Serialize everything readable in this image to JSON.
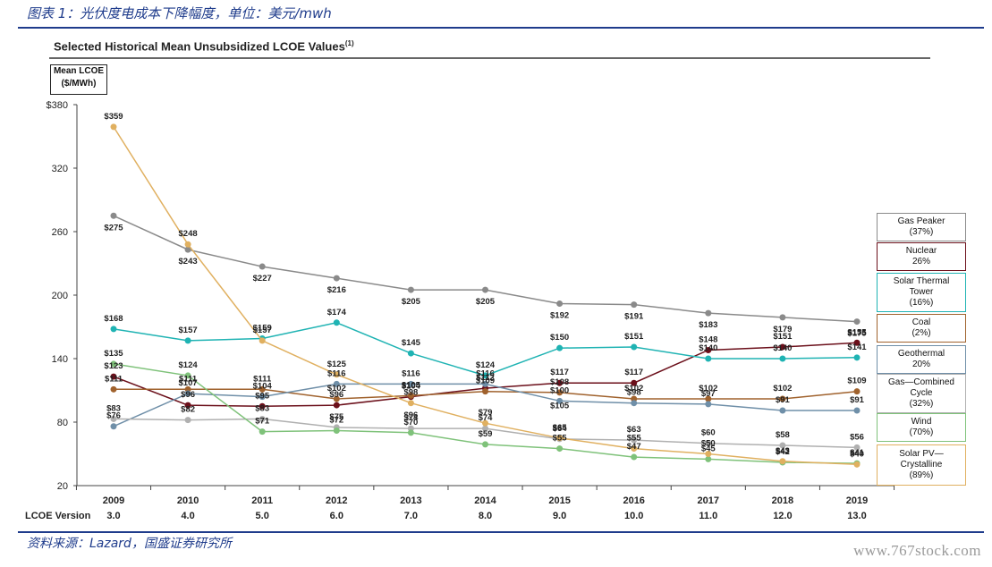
{
  "caption": "图表 1：光伏度电成本下降幅度，单位：美元/mwh",
  "source": "资料来源：Lazard，国盛证券研究所",
  "watermark": "www.767stock.com",
  "chart_data": {
    "type": "line",
    "title": "Selected Historical Mean Unsubsidized LCOE Values",
    "title_sup": "(1)",
    "ylabel_line1": "Mean LCOE",
    "ylabel_line2": "($/MWh)",
    "ylim": [
      20,
      380
    ],
    "y_ticks": [
      "$380",
      "320",
      "260",
      "200",
      "140",
      "80",
      "20"
    ],
    "categories": [
      "2009",
      "2010",
      "2011",
      "2012",
      "2013",
      "2014",
      "2015",
      "2016",
      "2017",
      "2018",
      "2019"
    ],
    "version_label": "LCOE Version",
    "versions": [
      "3.0",
      "4.0",
      "5.0",
      "6.0",
      "7.0",
      "8.0",
      "9.0",
      "10.0",
      "11.0",
      "12.0",
      "13.0"
    ],
    "grid": false,
    "legend_position": "right",
    "series": [
      {
        "name": "Gas Peaker",
        "legend": [
          "Gas Peaker",
          "(37%)"
        ],
        "color": "#8a8a8a",
        "values": [
          275,
          243,
          227,
          216,
          205,
          205,
          192,
          191,
          183,
          179,
          175
        ],
        "labels": [
          "$275",
          "$243",
          "$227",
          "$216",
          "$205",
          "$205",
          "$192",
          "$191",
          "$183",
          "$179",
          "$175"
        ]
      },
      {
        "name": "Nuclear",
        "legend": [
          "Nuclear",
          "26%"
        ],
        "color": "#6b0f1a",
        "values": [
          123,
          96,
          95,
          96,
          104,
          112,
          117,
          117,
          148,
          151,
          155
        ],
        "labels": [
          "$123",
          "$96",
          "$95",
          "$96",
          "$104",
          "$112",
          "$117",
          "$117",
          "$148",
          "$151",
          "$155"
        ]
      },
      {
        "name": "Solar Thermal Tower",
        "legend": [
          "Solar Thermal",
          "Tower",
          "(16%)"
        ],
        "color": "#1fb3b3",
        "values": [
          168,
          157,
          159,
          174,
          145,
          124,
          150,
          151,
          140,
          140,
          141
        ],
        "labels": [
          "$168",
          "$157",
          "$159",
          "$174",
          "$145",
          "$124",
          "$150",
          "$151",
          "$140",
          "$140",
          "$141"
        ]
      },
      {
        "name": "Coal",
        "legend": [
          "Coal",
          "(2%)"
        ],
        "color": "#a0622d",
        "values": [
          111,
          111,
          111,
          102,
          105,
          109,
          108,
          102,
          102,
          102,
          109
        ],
        "labels": [
          "$111",
          "$111",
          "$111",
          "$102",
          "$105",
          "$109",
          "$108",
          "$102",
          "$102",
          "$102",
          "$109"
        ]
      },
      {
        "name": "Geothermal",
        "legend": [
          "Geothermal",
          "20%"
        ],
        "color": "#6f8fa8",
        "values": [
          76,
          107,
          104,
          116,
          116,
          116,
          100,
          98,
          97,
          91,
          91
        ],
        "labels": [
          "$76",
          "$107",
          "$104",
          "$116",
          "$116",
          "$116",
          "$100",
          "$98",
          "$97",
          "$91",
          "$91"
        ]
      },
      {
        "name": "Gas—Combined Cycle",
        "legend": [
          "Gas—Combined",
          "Cycle",
          "(32%)"
        ],
        "color": "#b0b0b0",
        "values": [
          83,
          82,
          83,
          75,
          74,
          74,
          64,
          63,
          60,
          58,
          56
        ],
        "labels": [
          "$83",
          "$82",
          "$83",
          "$75",
          "$74",
          "$74",
          "$64",
          "$63",
          "$60",
          "$58",
          "$56"
        ]
      },
      {
        "name": "Wind",
        "legend": [
          "Wind",
          "(70%)"
        ],
        "color": "#7fc27a",
        "values": [
          135,
          124,
          71,
          72,
          70,
          59,
          55,
          47,
          45,
          42,
          41
        ],
        "labels": [
          "$135",
          "$124",
          "$71",
          "$72",
          "$70",
          "$59",
          "$55",
          "$47",
          "$45",
          "$42",
          "$41"
        ]
      },
      {
        "name": "Solar PV—Crystalline",
        "legend": [
          "Solar PV—",
          "Crystalline",
          "(89%)"
        ],
        "color": "#e0b060",
        "values": [
          359,
          248,
          157,
          125,
          98,
          79,
          65,
          55,
          50,
          43,
          40
        ],
        "labels": [
          "$359",
          "$248",
          "$157",
          "$125",
          "$98",
          "$79",
          "$65",
          "$55",
          "$50",
          "$43",
          "$40"
        ]
      }
    ],
    "extra_points": [
      {
        "x": "2013",
        "value": 96,
        "label": "$96"
      },
      {
        "x": "2015",
        "value": 105,
        "label": "$105"
      }
    ]
  }
}
